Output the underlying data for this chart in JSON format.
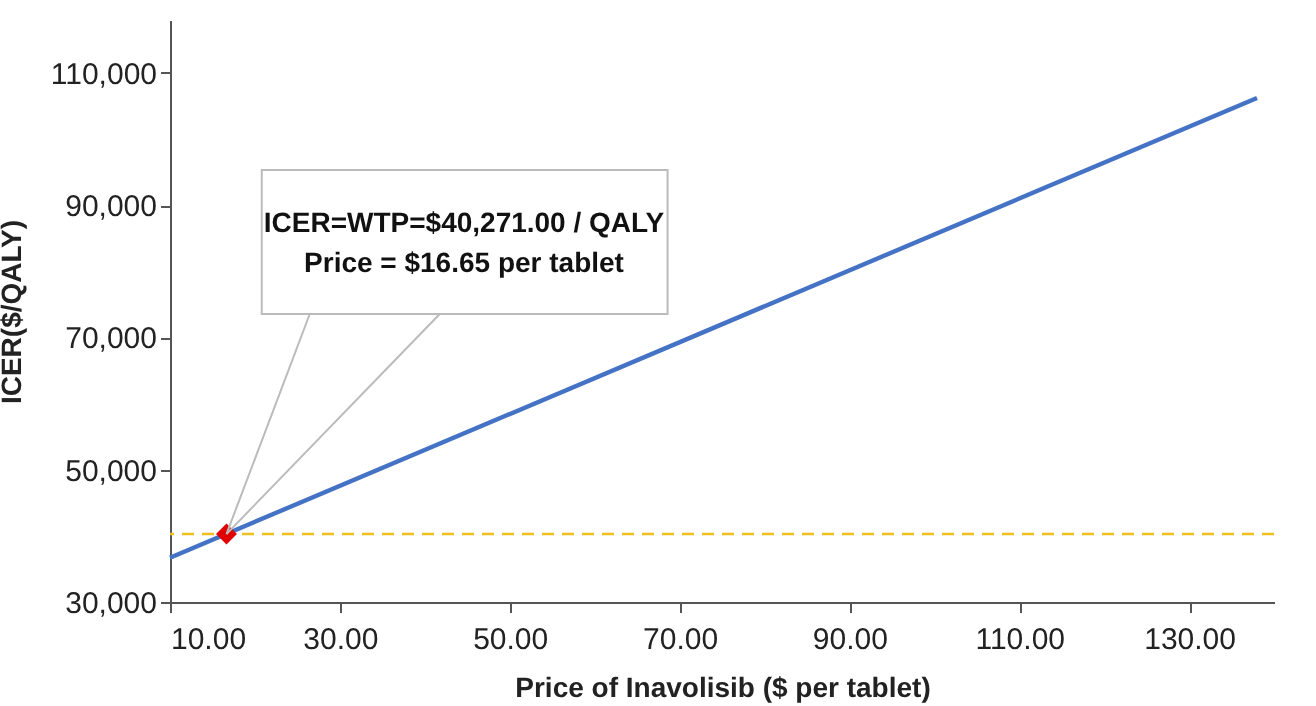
{
  "chart_data": {
    "type": "line",
    "xlabel": "Price of Inavolisib ($ per tablet)",
    "ylabel": "ICER($/QALY)",
    "xlim": [
      10,
      140
    ],
    "xticks": [
      {
        "value": 10,
        "label": "10.00"
      },
      {
        "value": 30,
        "label": "30.00"
      },
      {
        "value": 50,
        "label": "50.00"
      },
      {
        "value": 70,
        "label": "70.00"
      },
      {
        "value": 90,
        "label": "90.00"
      },
      {
        "value": 110,
        "label": "110.00"
      },
      {
        "value": 130,
        "label": "130.00"
      }
    ],
    "ylim": [
      30000,
      118000
    ],
    "yticks": [
      {
        "value": 30000,
        "label": "30,000"
      },
      {
        "value": 50000,
        "label": "50,000"
      },
      {
        "value": 70000,
        "label": "70,000"
      },
      {
        "value": 90000,
        "label": "90,000"
      },
      {
        "value": 110000,
        "label": "110,000"
      }
    ],
    "series": [
      {
        "type": "line",
        "color": "#4472c4",
        "x": [
          10,
          138
        ],
        "values": [
          36700,
          106200
        ]
      },
      {
        "type": "scatter",
        "color": "#e00000",
        "marker": "diamond",
        "x": [
          16.65
        ],
        "values": [
          40271
        ]
      }
    ],
    "ref_lines": [
      {
        "axis": "y",
        "value": 40271,
        "color": "#f0c020",
        "line_style": "dashed"
      }
    ],
    "annotations": [
      {
        "text": "ICER=WTP=$40,271.00 / QALY\nPrice = $16.65 per tablet",
        "x": 16.65,
        "y": 40271
      }
    ],
    "grid": false
  }
}
